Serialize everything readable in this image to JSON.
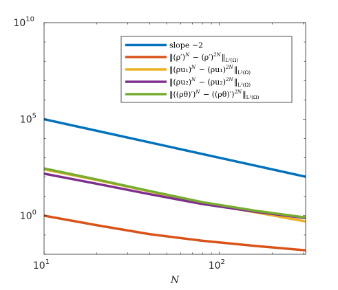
{
  "chart_data": {
    "type": "line",
    "title": "",
    "xlabel": "N",
    "ylabel": "",
    "xscale": "log",
    "yscale": "log",
    "xlim": [
      10,
      310
    ],
    "ylim": [
      0.01,
      10000000000.0
    ],
    "grid": false,
    "legend_position": "top-right",
    "x_ticks": [
      {
        "value": 10,
        "base": "10",
        "exp": "1"
      },
      {
        "value": 100,
        "base": "10",
        "exp": "2"
      }
    ],
    "y_ticks": [
      {
        "value": 1,
        "base": "10",
        "exp": "0"
      },
      {
        "value": 100000,
        "base": "10",
        "exp": "5"
      },
      {
        "value": 10000000000,
        "base": "10",
        "exp": "10"
      }
    ],
    "series": [
      {
        "name": "slope −2",
        "color": "#0072BD",
        "x": [
          10,
          310
        ],
        "y": [
          100000,
          104.06
        ]
      },
      {
        "name": "‖(ρ′)^N − (ρ′)^{2N}‖_{L²(Ω)}",
        "color": "#D95319",
        "x": [
          10,
          20,
          40,
          80,
          160,
          310
        ],
        "y": [
          1.0,
          0.32,
          0.11,
          0.05,
          0.027,
          0.016
        ]
      },
      {
        "name": "‖(ρu₁)^N − (ρu₁)^{2N}‖_{L²(Ω)}",
        "color": "#EDB120",
        "x": [
          10,
          20,
          40,
          80,
          160,
          310
        ],
        "y": [
          250,
          70,
          18,
          4.5,
          1.5,
          0.5
        ]
      },
      {
        "name": "‖(ρu₂)^N − (ρu₂)^{2N}‖_{L²(Ω)}",
        "color": "#7E2F8E",
        "x": [
          10,
          20,
          40,
          80,
          160,
          310
        ],
        "y": [
          150,
          45,
          13,
          4.0,
          1.6,
          0.75
        ]
      },
      {
        "name": "‖((ρθ)′)^N − ((ρθ)′)^{2N}‖_{L²(Ω)}",
        "color": "#77AC30",
        "x": [
          10,
          20,
          40,
          80,
          160,
          310
        ],
        "y": [
          280,
          75,
          19,
          5.0,
          1.8,
          0.8
        ]
      }
    ]
  }
}
